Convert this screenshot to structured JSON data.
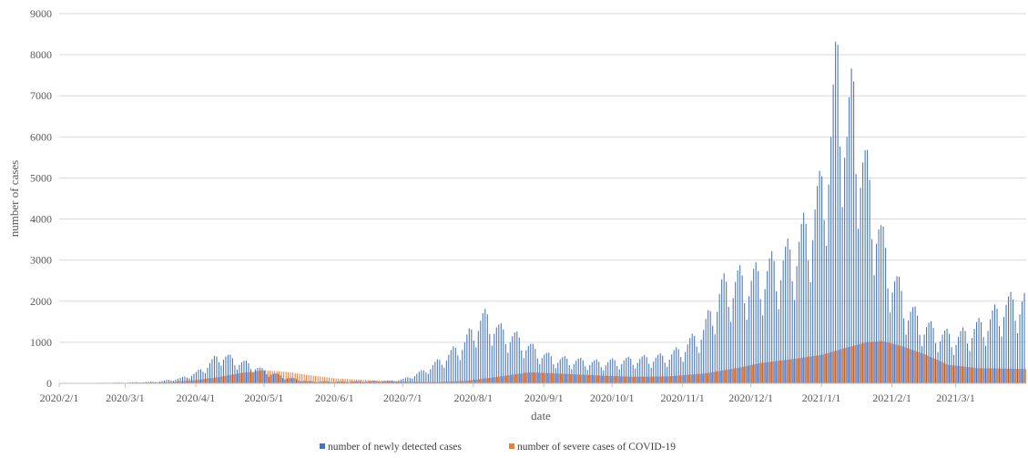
{
  "chart_data": {
    "type": "bar",
    "xlabel": "date",
    "ylabel": "number of cases",
    "ylim": [
      0,
      9000
    ],
    "yticks": [
      0,
      1000,
      2000,
      3000,
      4000,
      5000,
      6000,
      7000,
      8000,
      9000
    ],
    "xlim": [
      "2020-02-01",
      "2021-03-31"
    ],
    "xtick_labels": [
      "2020/2/1",
      "2020/3/1",
      "2020/4/1",
      "2020/5/1",
      "2020/6/1",
      "2020/7/1",
      "2020/8/1",
      "2020/9/1",
      "2020/10/1",
      "2020/11/1",
      "2020/12/1",
      "2021/1/1",
      "2021/2/1",
      "2021/3/1"
    ],
    "grid": "horizontal",
    "legend_position": "bottom",
    "bar_width_days": 0.5,
    "series": [
      {
        "name": "number of newly detected cases",
        "color": "#4472c4",
        "points": [
          [
            "2020-02-01",
            0
          ],
          [
            "2020-02-15",
            10
          ],
          [
            "2020-03-01",
            20
          ],
          [
            "2020-03-15",
            40
          ],
          [
            "2020-03-25",
            120
          ],
          [
            "2020-04-01",
            250
          ],
          [
            "2020-04-05",
            400
          ],
          [
            "2020-04-09",
            580
          ],
          [
            "2020-04-12",
            700
          ],
          [
            "2020-04-18",
            560
          ],
          [
            "2020-04-25",
            450
          ],
          [
            "2020-05-01",
            300
          ],
          [
            "2020-05-10",
            150
          ],
          [
            "2020-05-20",
            50
          ],
          [
            "2020-06-01",
            40
          ],
          [
            "2020-06-15",
            50
          ],
          [
            "2020-06-25",
            60
          ],
          [
            "2020-07-01",
            100
          ],
          [
            "2020-07-10",
            300
          ],
          [
            "2020-07-20",
            650
          ],
          [
            "2020-07-28",
            1000
          ],
          [
            "2020-08-03",
            1500
          ],
          [
            "2020-08-07",
            1600
          ],
          [
            "2020-08-12",
            1300
          ],
          [
            "2020-08-20",
            1100
          ],
          [
            "2020-08-28",
            800
          ],
          [
            "2020-09-05",
            600
          ],
          [
            "2020-09-15",
            550
          ],
          [
            "2020-09-25",
            500
          ],
          [
            "2020-10-05",
            550
          ],
          [
            "2020-10-15",
            600
          ],
          [
            "2020-10-25",
            650
          ],
          [
            "2020-11-01",
            850
          ],
          [
            "2020-11-10",
            1300
          ],
          [
            "2020-11-18",
            2300
          ],
          [
            "2020-11-25",
            2500
          ],
          [
            "2020-12-01",
            2500
          ],
          [
            "2020-12-10",
            2800
          ],
          [
            "2020-12-18",
            3100
          ],
          [
            "2020-12-25",
            3700
          ],
          [
            "2020-12-31",
            4500
          ],
          [
            "2021-01-05",
            6000
          ],
          [
            "2021-01-08",
            7850
          ],
          [
            "2021-01-12",
            6000
          ],
          [
            "2021-01-15",
            7000
          ],
          [
            "2021-01-18",
            5600
          ],
          [
            "2021-01-23",
            4500
          ],
          [
            "2021-01-27",
            3500
          ],
          [
            "2021-02-01",
            2600
          ],
          [
            "2021-02-08",
            1800
          ],
          [
            "2021-02-15",
            1400
          ],
          [
            "2021-02-22",
            1200
          ],
          [
            "2021-03-01",
            1100
          ],
          [
            "2021-03-08",
            1300
          ],
          [
            "2021-03-15",
            1500
          ],
          [
            "2021-03-22",
            1900
          ],
          [
            "2021-03-31",
            2000
          ]
        ]
      },
      {
        "name": "number of severe cases of COVID-19",
        "color": "#ed7d31",
        "points": [
          [
            "2020-02-01",
            0
          ],
          [
            "2020-03-01",
            10
          ],
          [
            "2020-03-20",
            30
          ],
          [
            "2020-04-01",
            80
          ],
          [
            "2020-04-10",
            150
          ],
          [
            "2020-04-20",
            250
          ],
          [
            "2020-04-30",
            320
          ],
          [
            "2020-05-10",
            280
          ],
          [
            "2020-05-20",
            200
          ],
          [
            "2020-06-01",
            120
          ],
          [
            "2020-06-15",
            80
          ],
          [
            "2020-07-01",
            40
          ],
          [
            "2020-07-15",
            30
          ],
          [
            "2020-07-28",
            60
          ],
          [
            "2020-08-10",
            150
          ],
          [
            "2020-08-25",
            270
          ],
          [
            "2020-09-10",
            230
          ],
          [
            "2020-09-25",
            190
          ],
          [
            "2020-10-10",
            160
          ],
          [
            "2020-10-25",
            170
          ],
          [
            "2020-11-10",
            240
          ],
          [
            "2020-11-25",
            380
          ],
          [
            "2020-12-05",
            500
          ],
          [
            "2020-12-20",
            600
          ],
          [
            "2021-01-01",
            700
          ],
          [
            "2021-01-10",
            850
          ],
          [
            "2021-01-20",
            1000
          ],
          [
            "2021-01-27",
            1030
          ],
          [
            "2021-02-05",
            900
          ],
          [
            "2021-02-15",
            700
          ],
          [
            "2021-02-25",
            450
          ],
          [
            "2021-03-10",
            370
          ],
          [
            "2021-03-31",
            350
          ]
        ]
      }
    ]
  }
}
